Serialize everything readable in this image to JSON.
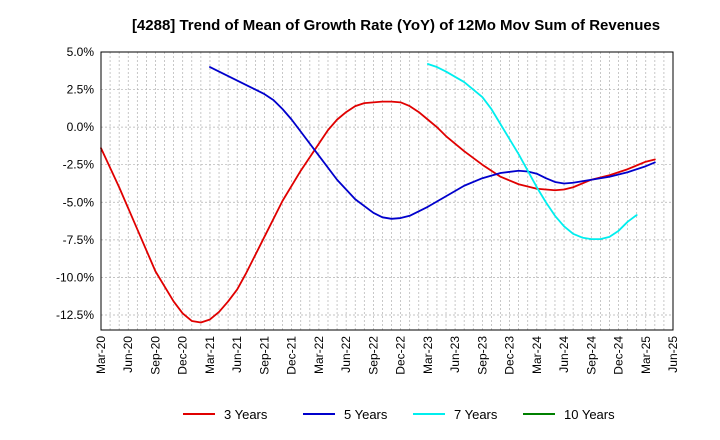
{
  "chart_data": {
    "type": "line",
    "title": "[4288]  Trend of Mean of Growth Rate (YoY) of 12Mo Mov Sum of Revenues",
    "xlabel": "",
    "ylabel": "",
    "ylim": [
      -13.5,
      5.0
    ],
    "y_ticks": [
      5.0,
      2.5,
      0.0,
      -2.5,
      -5.0,
      -7.5,
      -10.0,
      -12.5
    ],
    "y_tick_labels": [
      "5.0%",
      "2.5%",
      "0.0%",
      "-2.5%",
      "-5.0%",
      "-7.5%",
      "-10.0%",
      "-12.5%"
    ],
    "x_tick_labels": [
      "Mar-20",
      "Jun-20",
      "Sep-20",
      "Dec-20",
      "Mar-21",
      "Jun-21",
      "Sep-21",
      "Dec-21",
      "Mar-22",
      "Jun-22",
      "Sep-22",
      "Dec-22",
      "Mar-23",
      "Jun-23",
      "Sep-23",
      "Dec-23",
      "Mar-24",
      "Jun-24",
      "Sep-24",
      "Dec-24",
      "Mar-25",
      "Jun-25"
    ],
    "x_range_months": [
      0,
      63
    ],
    "grid": true,
    "legend_position": "bottom",
    "series": [
      {
        "name": "3 Years",
        "color": "#e00000",
        "points": [
          [
            0,
            -1.4
          ],
          [
            2,
            -4.0
          ],
          [
            4,
            -6.8
          ],
          [
            6,
            -9.6
          ],
          [
            8,
            -11.6
          ],
          [
            9,
            -12.4
          ],
          [
            10,
            -12.9
          ],
          [
            11,
            -13.0
          ],
          [
            12,
            -12.8
          ],
          [
            13,
            -12.3
          ],
          [
            14,
            -11.6
          ],
          [
            15,
            -10.8
          ],
          [
            16,
            -9.7
          ],
          [
            18,
            -7.3
          ],
          [
            20,
            -4.9
          ],
          [
            22,
            -2.9
          ],
          [
            24,
            -1.1
          ],
          [
            25,
            -0.2
          ],
          [
            26,
            0.5
          ],
          [
            27,
            1.0
          ],
          [
            28,
            1.4
          ],
          [
            29,
            1.6
          ],
          [
            30,
            1.65
          ],
          [
            31,
            1.7
          ],
          [
            32,
            1.7
          ],
          [
            33,
            1.65
          ],
          [
            34,
            1.4
          ],
          [
            35,
            1.0
          ],
          [
            36,
            0.5
          ],
          [
            37,
            0.0
          ],
          [
            38,
            -0.6
          ],
          [
            40,
            -1.6
          ],
          [
            42,
            -2.5
          ],
          [
            44,
            -3.3
          ],
          [
            46,
            -3.8
          ],
          [
            48,
            -4.1
          ],
          [
            50,
            -4.2
          ],
          [
            51,
            -4.15
          ],
          [
            52,
            -4.0
          ],
          [
            54,
            -3.5
          ],
          [
            56,
            -3.2
          ],
          [
            58,
            -2.8
          ],
          [
            60,
            -2.3
          ],
          [
            61,
            -2.15
          ]
        ]
      },
      {
        "name": "5 Years",
        "color": "#0000cc",
        "points": [
          [
            12,
            4.0
          ],
          [
            13,
            3.7
          ],
          [
            14,
            3.4
          ],
          [
            16,
            2.8
          ],
          [
            18,
            2.2
          ],
          [
            19,
            1.8
          ],
          [
            20,
            1.2
          ],
          [
            21,
            0.5
          ],
          [
            22,
            -0.3
          ],
          [
            24,
            -1.9
          ],
          [
            26,
            -3.5
          ],
          [
            28,
            -4.8
          ],
          [
            30,
            -5.7
          ],
          [
            31,
            -6.0
          ],
          [
            32,
            -6.1
          ],
          [
            33,
            -6.05
          ],
          [
            34,
            -5.9
          ],
          [
            36,
            -5.3
          ],
          [
            38,
            -4.6
          ],
          [
            40,
            -3.9
          ],
          [
            42,
            -3.4
          ],
          [
            44,
            -3.05
          ],
          [
            46,
            -2.9
          ],
          [
            47,
            -2.95
          ],
          [
            48,
            -3.1
          ],
          [
            49,
            -3.4
          ],
          [
            50,
            -3.65
          ],
          [
            51,
            -3.75
          ],
          [
            52,
            -3.7
          ],
          [
            54,
            -3.5
          ],
          [
            56,
            -3.3
          ],
          [
            58,
            -3.0
          ],
          [
            60,
            -2.6
          ],
          [
            61,
            -2.35
          ]
        ]
      },
      {
        "name": "7 Years",
        "color": "#00eeee",
        "points": [
          [
            36,
            4.2
          ],
          [
            37,
            4.0
          ],
          [
            38,
            3.7
          ],
          [
            40,
            3.0
          ],
          [
            42,
            2.0
          ],
          [
            43,
            1.2
          ],
          [
            44,
            0.2
          ],
          [
            45,
            -0.8
          ],
          [
            46,
            -1.8
          ],
          [
            47,
            -2.9
          ],
          [
            48,
            -4.0
          ],
          [
            49,
            -5.0
          ],
          [
            50,
            -5.9
          ],
          [
            51,
            -6.6
          ],
          [
            52,
            -7.1
          ],
          [
            53,
            -7.35
          ],
          [
            54,
            -7.45
          ],
          [
            55,
            -7.45
          ],
          [
            56,
            -7.3
          ],
          [
            57,
            -6.9
          ],
          [
            58,
            -6.3
          ],
          [
            59,
            -5.85
          ]
        ]
      },
      {
        "name": "10 Years",
        "color": "#008000",
        "points": []
      }
    ]
  }
}
